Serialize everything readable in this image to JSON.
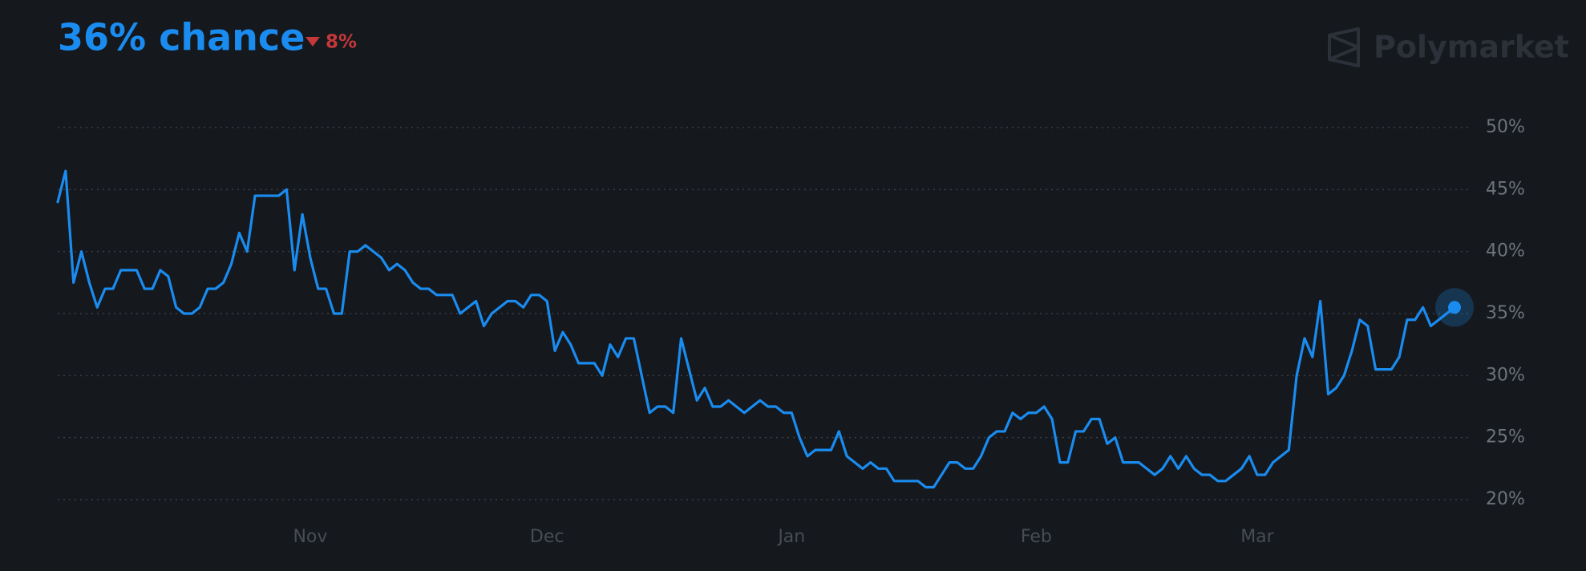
{
  "chart_data": {
    "type": "line",
    "title": "36% chance",
    "change": "8%",
    "brand": "Polymarket",
    "color": "#1a8cf0",
    "change_color": "#c4383a",
    "grid": true,
    "categories": [
      null,
      null,
      null,
      null,
      null,
      null,
      null,
      null,
      null,
      null,
      null,
      null,
      null,
      null,
      null,
      null,
      null,
      null,
      null,
      null,
      null,
      null,
      null,
      null,
      null,
      null,
      null,
      null,
      null,
      null,
      null,
      null,
      "Nov",
      null,
      null,
      null,
      null,
      null,
      null,
      null,
      null,
      null,
      null,
      null,
      null,
      null,
      null,
      null,
      null,
      null,
      null,
      null,
      null,
      null,
      null,
      null,
      null,
      null,
      null,
      null,
      null,
      null,
      "Dec",
      null,
      null,
      null,
      null,
      null,
      null,
      null,
      null,
      null,
      null,
      null,
      null,
      null,
      null,
      null,
      null,
      null,
      null,
      null,
      null,
      null,
      null,
      null,
      null,
      null,
      null,
      null,
      null,
      null,
      null,
      "Jan",
      null,
      null,
      null,
      null,
      null,
      null,
      null,
      null,
      null,
      null,
      null,
      null,
      null,
      null,
      null,
      null,
      null,
      null,
      null,
      null,
      null,
      null,
      null,
      null,
      null,
      null,
      null,
      null,
      null,
      null,
      "Feb",
      null,
      null,
      null,
      null,
      null,
      null,
      null,
      null,
      null,
      null,
      null,
      null,
      null,
      null,
      null,
      null,
      null,
      null,
      null,
      null,
      null,
      null,
      null,
      null,
      null,
      null,
      null,
      "Mar",
      null,
      null,
      null,
      null,
      null,
      null,
      null,
      null,
      null,
      null,
      null,
      null,
      null,
      null,
      null,
      null,
      null,
      null,
      null,
      null,
      null,
      null,
      null,
      null,
      null
    ],
    "values": [
      44,
      46.5,
      37.5,
      40,
      37.5,
      35.5,
      37,
      37,
      38.5,
      38.5,
      38.5,
      37,
      37,
      38.5,
      38,
      35.5,
      35,
      35,
      35.5,
      37,
      37,
      37.5,
      39,
      41.5,
      40,
      44.5,
      44.5,
      44.5,
      44.5,
      45,
      38.5,
      43,
      39.5,
      37,
      37,
      35,
      35,
      40,
      40,
      40.5,
      40,
      39.5,
      38.5,
      39,
      38.5,
      37.5,
      37,
      37,
      36.5,
      36.5,
      36.5,
      35,
      35.5,
      36,
      34,
      35,
      35.5,
      36,
      36,
      35.5,
      36.5,
      36.5,
      36,
      32,
      33.5,
      32.5,
      31,
      31,
      31,
      30,
      32.5,
      31.5,
      33,
      33,
      30,
      27,
      27.5,
      27.5,
      27,
      33,
      30.5,
      28,
      29,
      27.5,
      27.5,
      28,
      27.5,
      27,
      27.5,
      28,
      27.5,
      27.5,
      27,
      27,
      25,
      23.5,
      24,
      24,
      24,
      25.5,
      23.5,
      23,
      22.5,
      23,
      22.5,
      22.5,
      21.5,
      21.5,
      21.5,
      21.5,
      21,
      21,
      22,
      23,
      23,
      22.5,
      22.5,
      23.5,
      25,
      25.5,
      25.5,
      27,
      26.5,
      27,
      27,
      27.5,
      26.5,
      23,
      23,
      25.5,
      25.5,
      26.5,
      26.5,
      24.5,
      25,
      23,
      23,
      23,
      22.5,
      22,
      22.5,
      23.5,
      22.5,
      23.5,
      22.5,
      22,
      22,
      21.5,
      21.5,
      22,
      22.5,
      23.5,
      22,
      22,
      23,
      23.5,
      24,
      30,
      33,
      31.5,
      36,
      28.5,
      29,
      30,
      32,
      34.5,
      34,
      30.5,
      30.5,
      30.5,
      31.5,
      34.5,
      34.5,
      35.5,
      34,
      34.5,
      35,
      35.5
    ],
    "ylim": [
      20,
      50
    ],
    "yticks": [
      {
        "value": 20,
        "label": "20%"
      },
      {
        "value": 25,
        "label": "25%"
      },
      {
        "value": 30,
        "label": "30%"
      },
      {
        "value": 35,
        "label": "35%"
      },
      {
        "value": 40,
        "label": "40%"
      },
      {
        "value": 45,
        "label": "45%"
      },
      {
        "value": 50,
        "label": "50%"
      }
    ]
  }
}
